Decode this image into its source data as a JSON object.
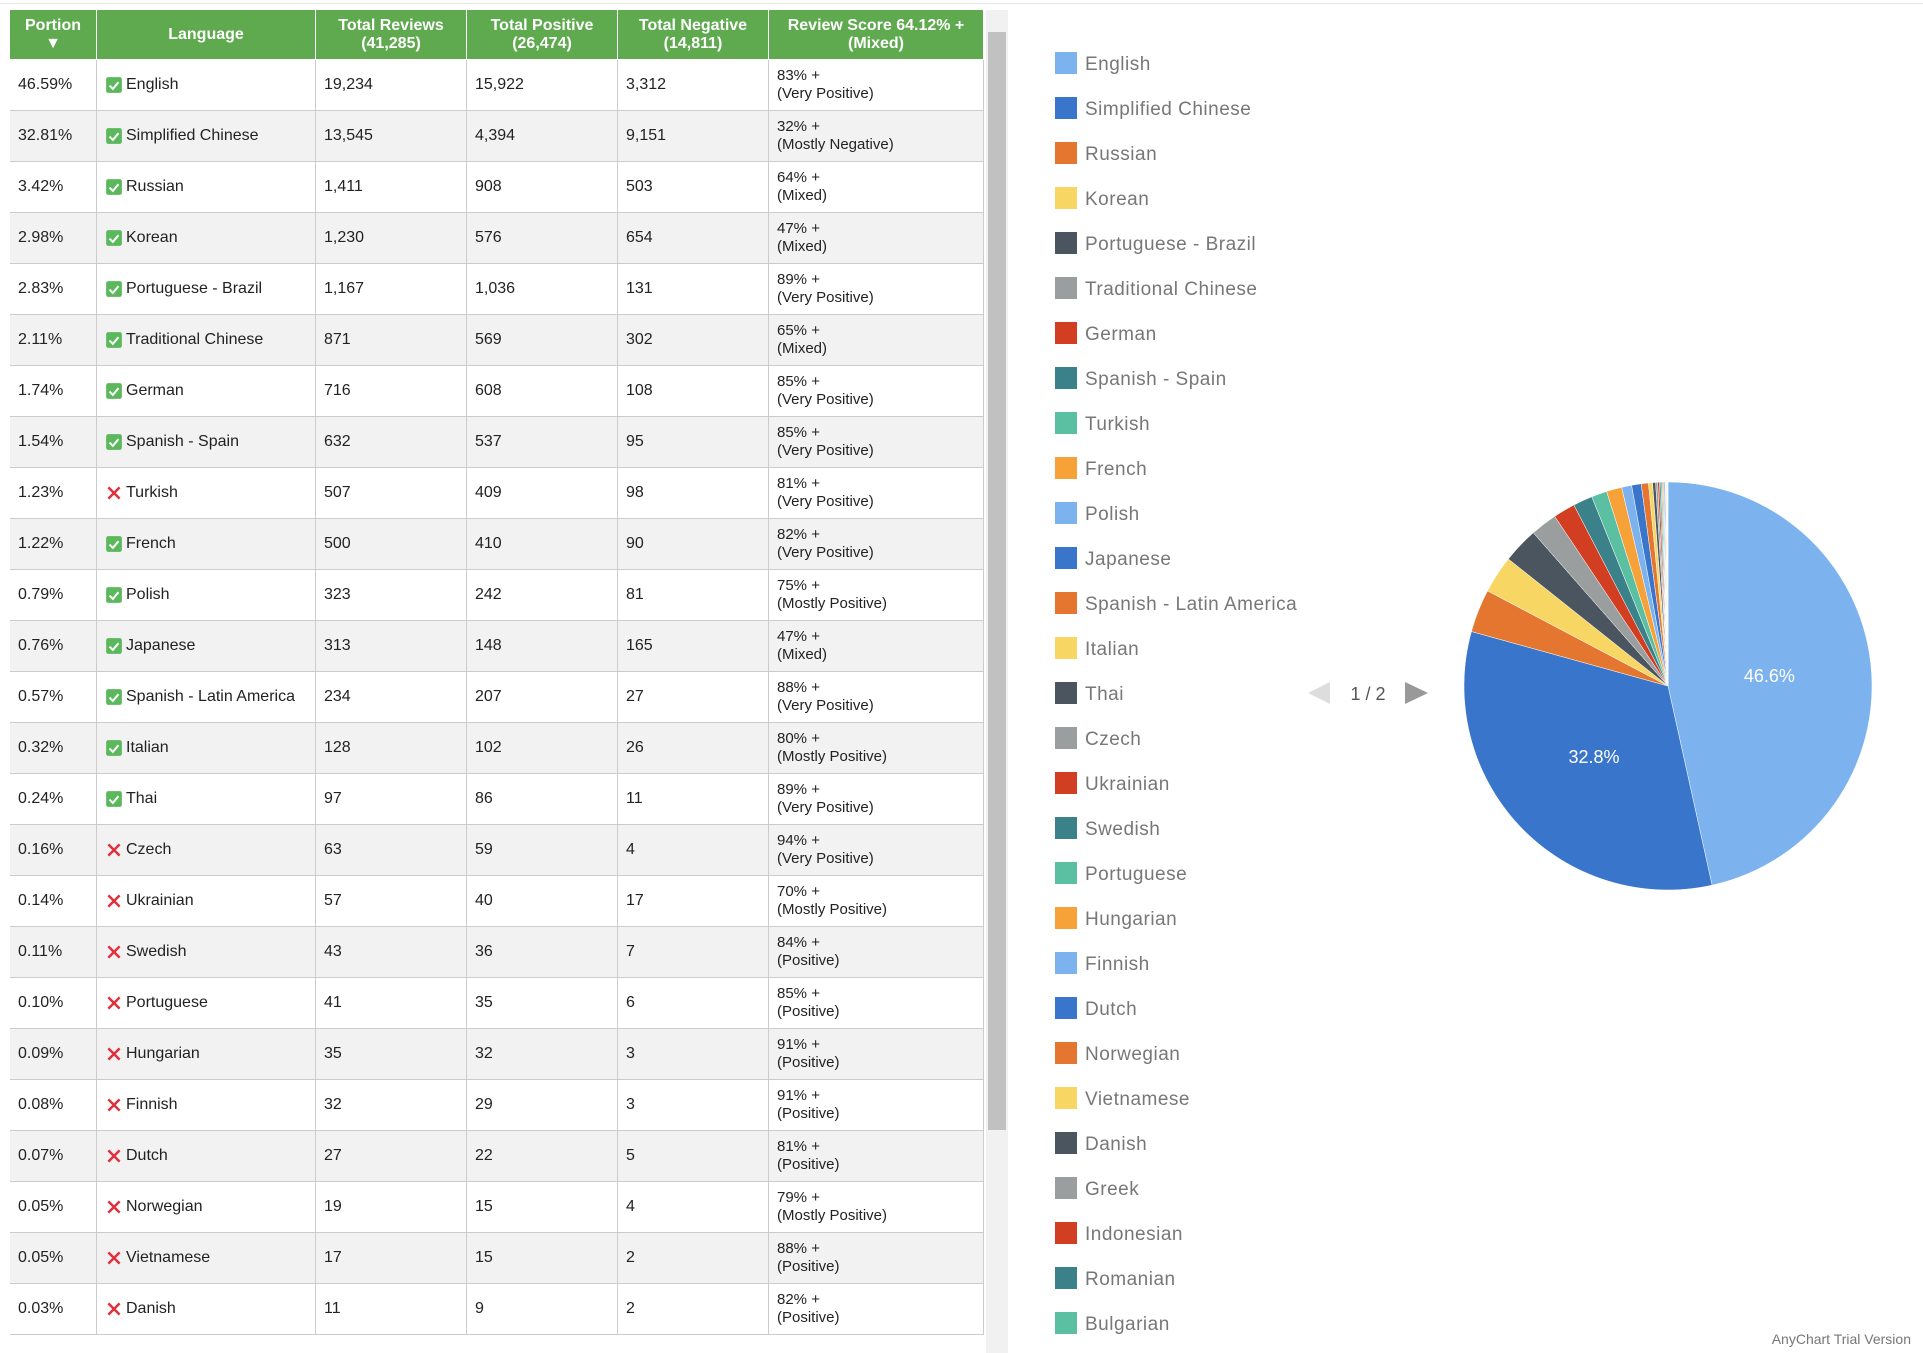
{
  "table": {
    "header": [
      [
        "Portion",
        "▼"
      ],
      [
        "Language"
      ],
      [
        "Total Reviews",
        "(41,285)"
      ],
      [
        "Total Positive",
        "(26,474)"
      ],
      [
        "Total Negative",
        "(14,811)"
      ],
      [
        "Review Score 64.12% +",
        "(Mixed)"
      ]
    ],
    "rows": [
      [
        "46.59%",
        "English",
        true,
        "19,234",
        "15,922",
        "3,312",
        "83% +",
        "(Very Positive)"
      ],
      [
        "32.81%",
        "Simplified Chinese",
        true,
        "13,545",
        "4,394",
        "9,151",
        "32% +",
        "(Mostly Negative)"
      ],
      [
        "3.42%",
        "Russian",
        true,
        "1,411",
        "908",
        "503",
        "64% +",
        "(Mixed)"
      ],
      [
        "2.98%",
        "Korean",
        true,
        "1,230",
        "576",
        "654",
        "47% +",
        "(Mixed)"
      ],
      [
        "2.83%",
        "Portuguese - Brazil",
        true,
        "1,167",
        "1,036",
        "131",
        "89% +",
        "(Very Positive)"
      ],
      [
        "2.11%",
        "Traditional Chinese",
        true,
        "871",
        "569",
        "302",
        "65% +",
        "(Mixed)"
      ],
      [
        "1.74%",
        "German",
        true,
        "716",
        "608",
        "108",
        "85% +",
        "(Very Positive)"
      ],
      [
        "1.54%",
        "Spanish - Spain",
        true,
        "632",
        "537",
        "95",
        "85% +",
        "(Very Positive)"
      ],
      [
        "1.23%",
        "Turkish",
        false,
        "507",
        "409",
        "98",
        "81% +",
        "(Very Positive)"
      ],
      [
        "1.22%",
        "French",
        true,
        "500",
        "410",
        "90",
        "82% +",
        "(Very Positive)"
      ],
      [
        "0.79%",
        "Polish",
        true,
        "323",
        "242",
        "81",
        "75% +",
        "(Mostly Positive)"
      ],
      [
        "0.76%",
        "Japanese",
        true,
        "313",
        "148",
        "165",
        "47% +",
        "(Mixed)"
      ],
      [
        "0.57%",
        "Spanish - Latin America",
        true,
        "234",
        "207",
        "27",
        "88% +",
        "(Very Positive)"
      ],
      [
        "0.32%",
        "Italian",
        true,
        "128",
        "102",
        "26",
        "80% +",
        "(Mostly Positive)"
      ],
      [
        "0.24%",
        "Thai",
        true,
        "97",
        "86",
        "11",
        "89% +",
        "(Very Positive)"
      ],
      [
        "0.16%",
        "Czech",
        false,
        "63",
        "59",
        "4",
        "94% +",
        "(Very Positive)"
      ],
      [
        "0.14%",
        "Ukrainian",
        false,
        "57",
        "40",
        "17",
        "70% +",
        "(Mostly Positive)"
      ],
      [
        "0.11%",
        "Swedish",
        false,
        "43",
        "36",
        "7",
        "84% +",
        "(Positive)"
      ],
      [
        "0.10%",
        "Portuguese",
        false,
        "41",
        "35",
        "6",
        "85% +",
        "(Positive)"
      ],
      [
        "0.09%",
        "Hungarian",
        false,
        "35",
        "32",
        "3",
        "91% +",
        "(Positive)"
      ],
      [
        "0.08%",
        "Finnish",
        false,
        "32",
        "29",
        "3",
        "91% +",
        "(Positive)"
      ],
      [
        "0.07%",
        "Dutch",
        false,
        "27",
        "22",
        "5",
        "81% +",
        "(Positive)"
      ],
      [
        "0.05%",
        "Norwegian",
        false,
        "19",
        "15",
        "4",
        "79% +",
        "(Mostly Positive)"
      ],
      [
        "0.05%",
        "Vietnamese",
        false,
        "17",
        "15",
        "2",
        "88% +",
        "(Positive)"
      ],
      [
        "0.03%",
        "Danish",
        false,
        "11",
        "9",
        "2",
        "82% +",
        "(Positive)"
      ]
    ]
  },
  "chart_data": {
    "type": "pie",
    "categories": [
      "English",
      "Simplified Chinese",
      "Russian",
      "Korean",
      "Portuguese - Brazil",
      "Traditional Chinese",
      "German",
      "Spanish - Spain",
      "Turkish",
      "French",
      "Polish",
      "Japanese",
      "Spanish - Latin America",
      "Italian",
      "Thai",
      "Czech",
      "Ukrainian",
      "Swedish",
      "Portuguese",
      "Hungarian",
      "Finnish",
      "Dutch",
      "Norwegian",
      "Vietnamese",
      "Danish",
      "Greek",
      "Indonesian",
      "Romanian",
      "Bulgarian"
    ],
    "values": [
      46.59,
      32.81,
      3.42,
      2.98,
      2.83,
      2.11,
      1.74,
      1.54,
      1.23,
      1.22,
      0.79,
      0.76,
      0.57,
      0.32,
      0.24,
      0.16,
      0.14,
      0.11,
      0.1,
      0.09,
      0.08,
      0.07,
      0.05,
      0.05,
      0.03,
      0.03,
      0.02,
      0.02,
      0.02
    ],
    "value_labels": [
      "46.6%",
      "32.8%",
      null,
      null,
      null,
      null,
      null,
      null,
      null,
      null,
      null,
      null,
      null,
      null,
      null,
      null,
      null,
      null,
      null,
      null,
      null,
      null,
      null,
      null,
      null,
      null,
      null,
      null,
      null
    ],
    "colors": [
      "#7cb3ef",
      "#3a75cc",
      "#e5762f",
      "#f8d664",
      "#4a5560",
      "#9a9e9e",
      "#d13e22",
      "#3b8189",
      "#5bbfa1",
      "#f7a238"
    ],
    "pagination": "1 / 2"
  },
  "footer": "AnyChart Trial Version"
}
